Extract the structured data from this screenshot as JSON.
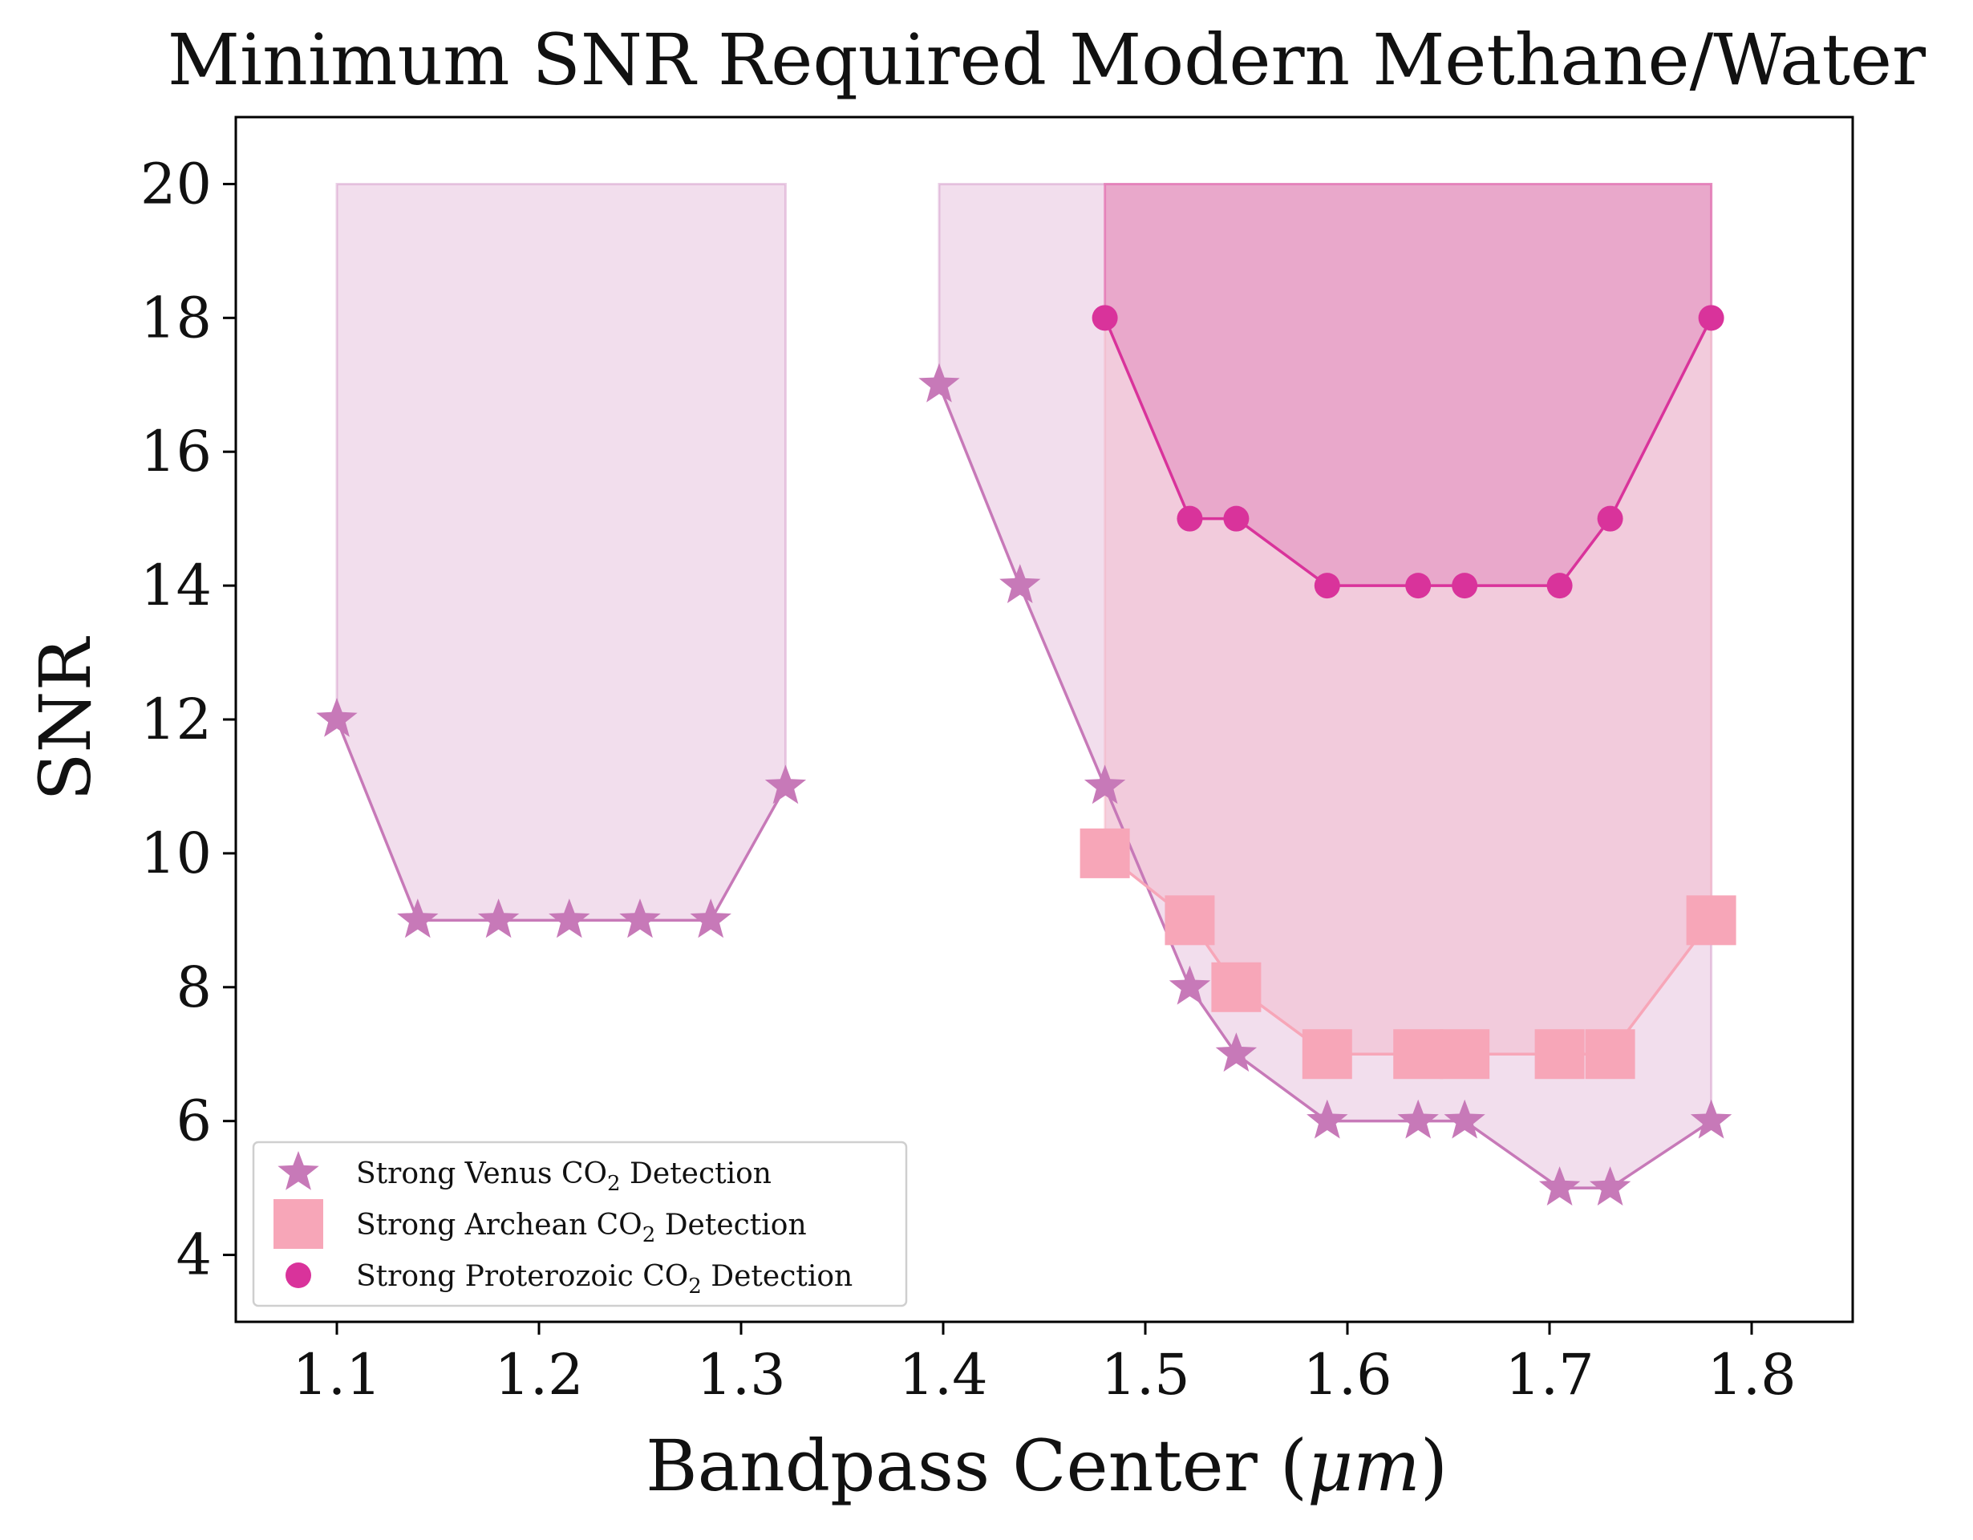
{
  "chart_data": {
    "type": "line",
    "title": "Minimum SNR Required Modern Methane/Water",
    "xlabel": "Bandpass Center (",
    "xlabel_mu": "μm",
    "xlabel_close": ")",
    "ylabel": "SNR",
    "xlim": [
      1.05,
      1.85
    ],
    "ylim": [
      3,
      21
    ],
    "xticks": [
      1.1,
      1.2,
      1.3,
      1.4,
      1.5,
      1.6,
      1.7,
      1.8
    ],
    "xtick_labels": [
      "1.1",
      "1.2",
      "1.3",
      "1.4",
      "1.5",
      "1.6",
      "1.7",
      "1.8"
    ],
    "yticks": [
      4,
      6,
      8,
      10,
      12,
      14,
      16,
      18,
      20
    ],
    "ytick_labels": [
      "4",
      "6",
      "8",
      "10",
      "12",
      "14",
      "16",
      "18",
      "20"
    ],
    "fill_top": 20,
    "series": [
      {
        "name": "Strong Venus CO₂ Detection",
        "legend_prefix": "Strong Venus CO",
        "legend_suffix": " Detection",
        "marker": "star",
        "color": "#c779b8",
        "fill": "#f0d8ea",
        "segments": [
          {
            "x": [
              1.1,
              1.14,
              1.18,
              1.215,
              1.25,
              1.285,
              1.322
            ],
            "y": [
              12,
              9,
              9,
              9,
              9,
              9,
              11
            ]
          },
          {
            "x": [
              1.398,
              1.438,
              1.48,
              1.522,
              1.545,
              1.59,
              1.635,
              1.658,
              1.705,
              1.73,
              1.78
            ],
            "y": [
              17,
              14,
              11,
              8,
              7,
              6,
              6,
              6,
              5,
              5,
              6
            ]
          }
        ]
      },
      {
        "name": "Strong Archean CO₂ Detection",
        "legend_prefix": "Strong Archean CO",
        "legend_suffix": " Detection",
        "marker": "square",
        "color": "#f7a6b8",
        "fill": "#f2c8d8",
        "segments": [
          {
            "x": [
              1.48,
              1.522,
              1.545,
              1.59,
              1.635,
              1.658,
              1.705,
              1.73,
              1.78
            ],
            "y": [
              10,
              9,
              8,
              7,
              7,
              7,
              7,
              7,
              9
            ]
          }
        ]
      },
      {
        "name": "Strong Proterozoic CO₂ Detection",
        "legend_prefix": "Strong Proterozoic CO",
        "legend_suffix": " Detection",
        "marker": "circle",
        "color": "#d9339b",
        "fill": "#e8a2c8",
        "segments": [
          {
            "x": [
              1.48,
              1.522,
              1.545,
              1.59,
              1.635,
              1.658,
              1.705,
              1.73,
              1.78
            ],
            "y": [
              18,
              15,
              15,
              14,
              14,
              14,
              14,
              15,
              18
            ]
          }
        ]
      }
    ],
    "legend_subscript": "2",
    "legend_position": "lower-left"
  }
}
